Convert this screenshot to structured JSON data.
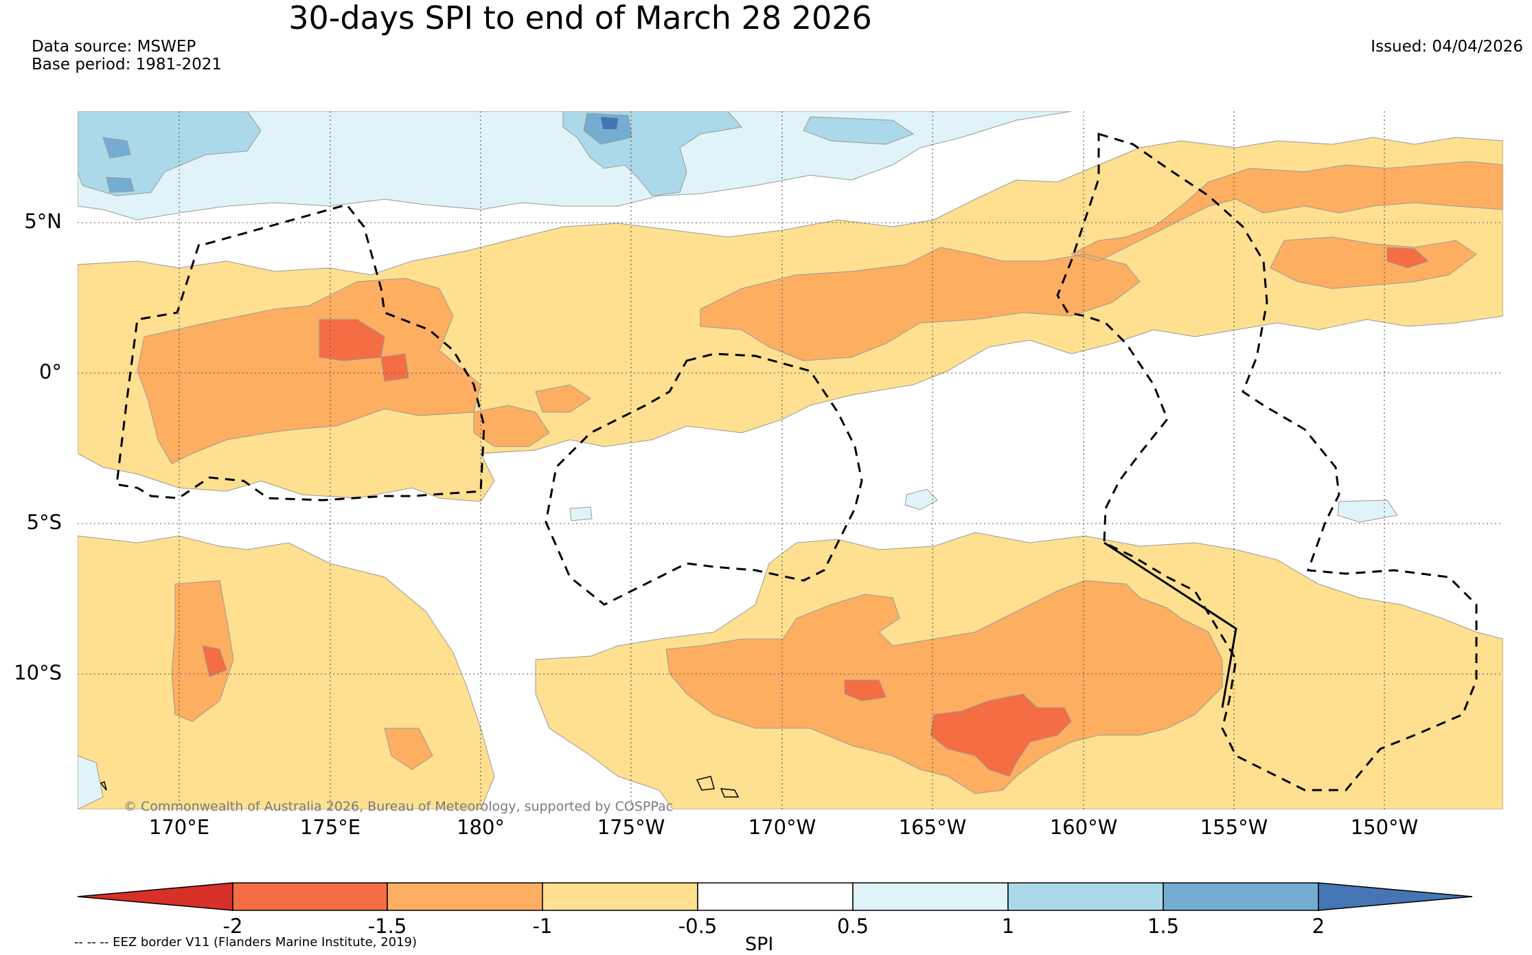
{
  "title": "30-days SPI to end of March 28 2026",
  "data_source": "Data source: MSWEP",
  "base_period": "Base period: 1981-2021",
  "issued": "Issued: 04/04/2026",
  "copyright": "© Commonwealth of Australia 2026, Bureau of Meteorology, supported by COSPPac",
  "eez_note": "-- -- -- EEZ border V11 (Flanders Marine Institute, 2019)",
  "map": {
    "lat_labels": [
      "5°N",
      "0°",
      "5°S",
      "10°S"
    ],
    "lon_labels": [
      "170°E",
      "175°E",
      "180°",
      "175°W",
      "170°W",
      "165°W",
      "160°W",
      "155°W",
      "150°W"
    ]
  },
  "colorbar": {
    "title": "SPI",
    "ticks": [
      "-2",
      "-1.5",
      "-1",
      "-0.5",
      "0.5",
      "1",
      "1.5",
      "2"
    ],
    "colors": [
      "#d73027",
      "#f46d43",
      "#fdae61",
      "#fee090",
      "#ffffff",
      "#e0f3f8",
      "#abd9e9",
      "#74add1",
      "#4575b4"
    ]
  }
}
